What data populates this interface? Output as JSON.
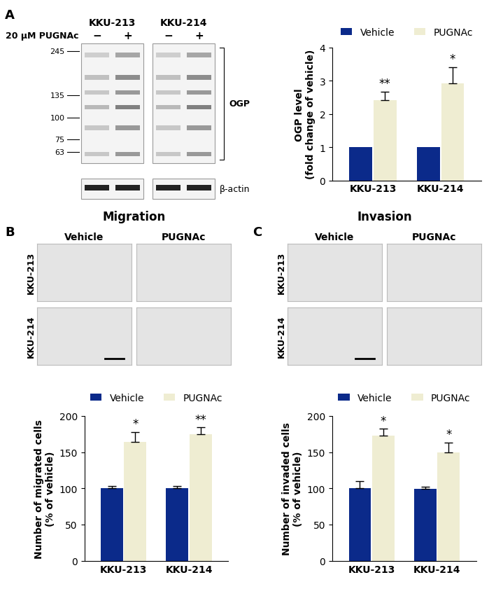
{
  "chart_data": [
    {
      "type": "bar",
      "categories": [
        "KKU-213",
        "KKU-214"
      ],
      "y_label": "OGP level\n(fold change of vehicle)",
      "ylim": [
        0,
        4
      ],
      "yticks": [
        0,
        1,
        2,
        3,
        4
      ],
      "legend": "upper center",
      "series": [
        {
          "name": "Vehicle",
          "color": "#0b2a8a",
          "values": [
            1,
            1
          ],
          "errors": [
            0,
            0
          ]
        },
        {
          "name": "PUGNAc",
          "color": "#efedd2",
          "values": [
            2.41,
            2.93
          ],
          "errors": [
            0.27,
            0.48
          ],
          "annotations": [
            "**",
            "*"
          ]
        }
      ]
    },
    {
      "type": "bar",
      "categories": [
        "KKU-213",
        "KKU-214"
      ],
      "y_label": "Number of migrated cells\n(% of vehicle)",
      "ylim": [
        0,
        200
      ],
      "yticks": [
        0,
        50,
        100,
        150,
        200
      ],
      "legend": "upper center",
      "series": [
        {
          "name": "Vehicle",
          "color": "#0b2a8a",
          "values": [
            100,
            100
          ],
          "errors": [
            3,
            3
          ]
        },
        {
          "name": "PUGNAc",
          "color": "#efedd2",
          "values": [
            164,
            175
          ],
          "errors": [
            14,
            9
          ],
          "annotations": [
            "*",
            "**"
          ]
        }
      ]
    },
    {
      "type": "bar",
      "categories": [
        "KKU-213",
        "KKU-214"
      ],
      "y_label": "Number of invaded cells\n(% of vehicle)",
      "ylim": [
        0,
        200
      ],
      "yticks": [
        0,
        50,
        100,
        150,
        200
      ],
      "legend": "upper center",
      "series": [
        {
          "name": "Vehicle",
          "color": "#0b2a8a",
          "values": [
            100,
            99
          ],
          "errors": [
            10,
            3
          ]
        },
        {
          "name": "PUGNAc",
          "color": "#efedd2",
          "values": [
            173,
            150
          ],
          "errors": [
            9,
            13
          ],
          "annotations": [
            "*",
            "*"
          ]
        }
      ]
    }
  ],
  "panels": [
    {
      "label": "A",
      "blot": {
        "cell_lines": [
          "KKU-213",
          "KKU-214"
        ],
        "treatment": "20 μM PUGNAc",
        "lanes": [
          "−",
          "+"
        ],
        "markers": [
          245,
          135,
          100,
          75,
          63
        ],
        "bracket_label": "OGP",
        "loading_control": "β-actin"
      }
    },
    {
      "label": "B",
      "title": "Migration",
      "micrographs": {
        "columns": [
          "Vehicle",
          "PUGNAc"
        ],
        "rows": [
          "KKU-213",
          "KKU-214"
        ]
      }
    },
    {
      "label": "C",
      "title": "Invasion",
      "micrographs": {
        "columns": [
          "Vehicle",
          "PUGNAc"
        ],
        "rows": [
          "KKU-213",
          "KKU-214"
        ]
      }
    }
  ]
}
